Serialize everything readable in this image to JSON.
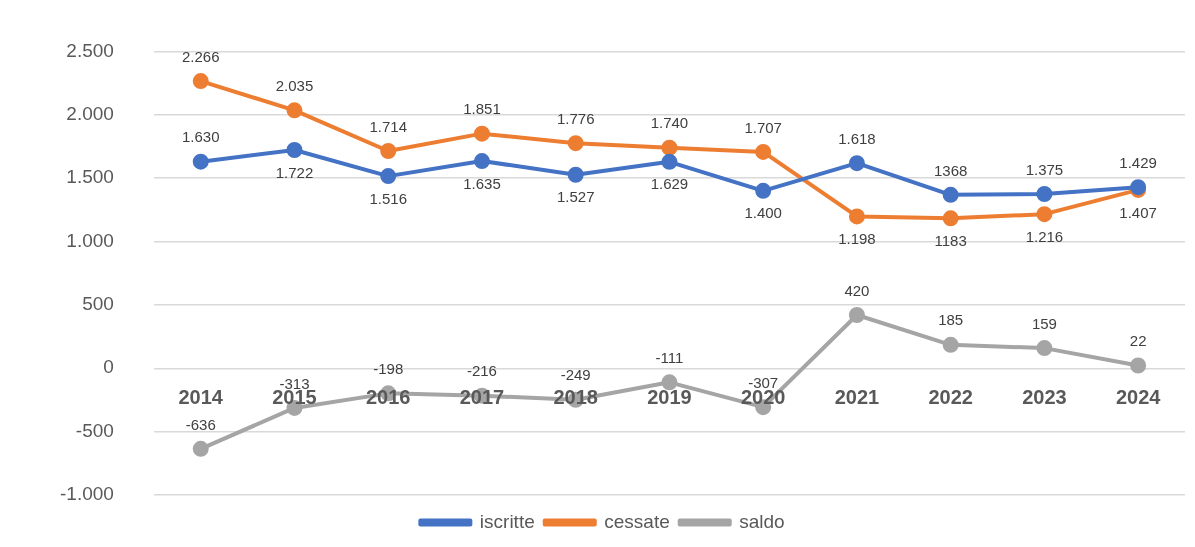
{
  "chart_data": {
    "type": "line",
    "categories": [
      "2014",
      "2015",
      "2016",
      "2017",
      "2018",
      "2019",
      "2020",
      "2021",
      "2022",
      "2023",
      "2024"
    ],
    "series": [
      {
        "name": "iscritte",
        "color": "#4472c4",
        "values": [
          1630,
          1722,
          1516,
          1635,
          1527,
          1629,
          1400,
          1618,
          1368,
          1375,
          1429
        ],
        "value_labels": [
          "1.630",
          "1.722",
          "1.516",
          "1.635",
          "1.527",
          "1.629",
          "1.400",
          "1.618",
          "1368",
          "1.375",
          "1.429"
        ]
      },
      {
        "name": "cessate",
        "color": "#ed7d31",
        "values": [
          2266,
          2035,
          1714,
          1851,
          1776,
          1740,
          1707,
          1198,
          1183,
          1216,
          1407
        ],
        "value_labels": [
          "2.266",
          "2.035",
          "1.714",
          "1.851",
          "1.776",
          "1.740",
          "1.707",
          "1.198",
          "1183",
          "1.216",
          "1.407"
        ]
      },
      {
        "name": "saldo",
        "color": "#a5a5a5",
        "values": [
          -636,
          -313,
          -198,
          -216,
          -249,
          -111,
          -307,
          420,
          185,
          159,
          22
        ],
        "value_labels": [
          "-636",
          "-313",
          "-198",
          "-216",
          "-249",
          "-111",
          "-307",
          "420",
          "185",
          "159",
          "22"
        ]
      }
    ],
    "ylim": [
      -1000,
      2500
    ],
    "yticks": [
      {
        "value": -1000,
        "label": "-1.000"
      },
      {
        "value": -500,
        "label": "-500"
      },
      {
        "value": 0,
        "label": "0"
      },
      {
        "value": 500,
        "label": "500"
      },
      {
        "value": 1000,
        "label": "1.000"
      },
      {
        "value": 1500,
        "label": "1.500"
      },
      {
        "value": 2000,
        "label": "2.000"
      },
      {
        "value": 2500,
        "label": "2.500"
      }
    ],
    "grid": "y",
    "legend": "bottom",
    "marker": "circle",
    "line_style": "solid"
  }
}
